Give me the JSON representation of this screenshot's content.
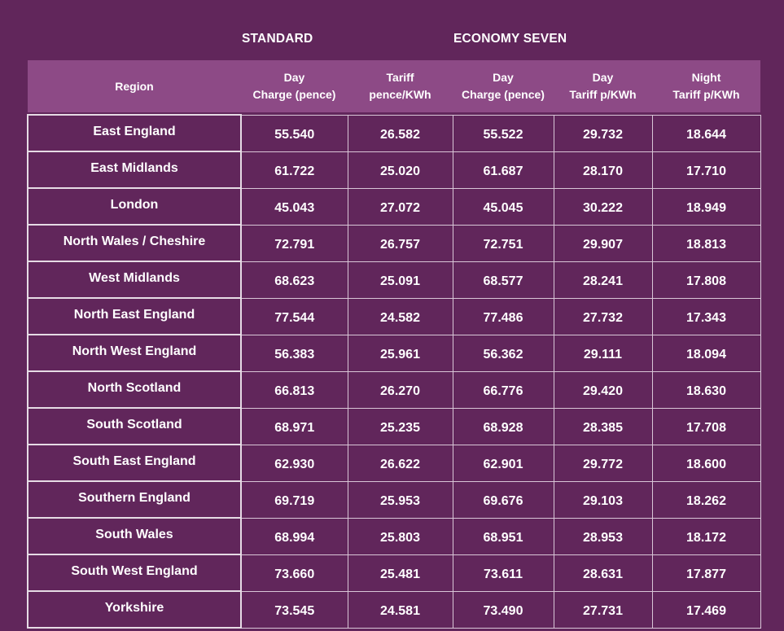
{
  "groups": {
    "standard": "STANDARD",
    "economy_seven": "ECONOMY SEVEN"
  },
  "columns": [
    [
      "Region"
    ],
    [
      "Day",
      "Charge (pence)"
    ],
    [
      "Tariff",
      "pence/KWh"
    ],
    [
      "Day",
      "Charge (pence)"
    ],
    [
      "Day",
      "Tariff p/KWh"
    ],
    [
      "Night",
      "Tariff p/KWh"
    ]
  ],
  "rows": [
    [
      "East England",
      "55.540",
      "26.582",
      "55.522",
      "29.732",
      "18.644"
    ],
    [
      "East Midlands",
      "61.722",
      "25.020",
      "61.687",
      "28.170",
      "17.710"
    ],
    [
      "London",
      "45.043",
      "27.072",
      "45.045",
      "30.222",
      "18.949"
    ],
    [
      "North Wales / Cheshire",
      "72.791",
      "26.757",
      "72.751",
      "29.907",
      "18.813"
    ],
    [
      "West Midlands",
      "68.623",
      "25.091",
      "68.577",
      "28.241",
      "17.808"
    ],
    [
      "North East England",
      "77.544",
      "24.582",
      "77.486",
      "27.732",
      "17.343"
    ],
    [
      "North West England",
      "56.383",
      "25.961",
      "56.362",
      "29.111",
      "18.094"
    ],
    [
      "North Scotland",
      "66.813",
      "26.270",
      "66.776",
      "29.420",
      "18.630"
    ],
    [
      "South Scotland",
      "68.971",
      "25.235",
      "68.928",
      "28.385",
      "17.708"
    ],
    [
      "South East England",
      "62.930",
      "26.622",
      "62.901",
      "29.772",
      "18.600"
    ],
    [
      "Southern England",
      "69.719",
      "25.953",
      "69.676",
      "29.103",
      "18.262"
    ],
    [
      "South Wales",
      "68.994",
      "25.803",
      "68.951",
      "28.953",
      "18.172"
    ],
    [
      "South West England",
      "73.660",
      "25.481",
      "73.611",
      "28.631",
      "17.877"
    ],
    [
      "Yorkshire",
      "73.545",
      "24.581",
      "73.490",
      "27.731",
      "17.469"
    ]
  ]
}
